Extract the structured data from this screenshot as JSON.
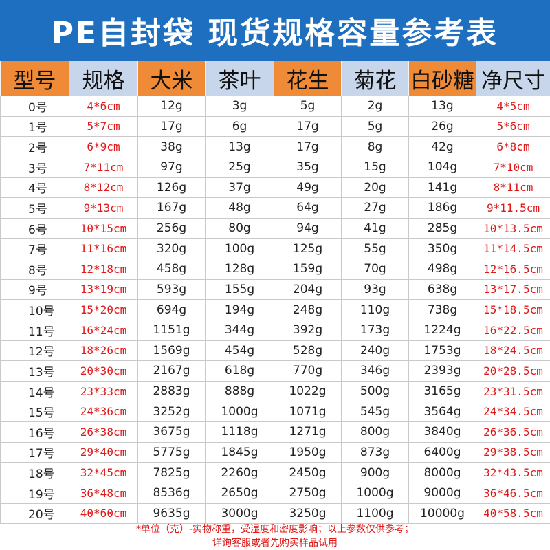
{
  "title": "PE自封袋  现货规格容量参考表",
  "headers": [
    {
      "label": "型号",
      "bg": "#ef8a37"
    },
    {
      "label": "规格",
      "bg": "#c7d6ea"
    },
    {
      "label": "大米",
      "bg": "#ef8a37"
    },
    {
      "label": "茶叶",
      "bg": "#c7d6ea"
    },
    {
      "label": "花生",
      "bg": "#ef8a37"
    },
    {
      "label": "菊花",
      "bg": "#c7d6ea"
    },
    {
      "label": "白砂糖",
      "bg": "#ef8a37"
    },
    {
      "label": "净尺寸",
      "bg": "#c7d6ea"
    }
  ],
  "rows": [
    [
      "0号",
      "4*6cm",
      "12g",
      "3g",
      "5g",
      "2g",
      "13g",
      "4*5cm"
    ],
    [
      "1号",
      "5*7cm",
      "17g",
      "6g",
      "17g",
      "5g",
      "26g",
      "5*6cm"
    ],
    [
      "2号",
      "6*9cm",
      "38g",
      "13g",
      "17g",
      "8g",
      "42g",
      "6*8cm"
    ],
    [
      "3号",
      "7*11cm",
      "97g",
      "25g",
      "35g",
      "15g",
      "104g",
      "7*10cm"
    ],
    [
      "4号",
      "8*12cm",
      "126g",
      "37g",
      "49g",
      "20g",
      "141g",
      "8*11cm"
    ],
    [
      "5号",
      "9*13cm",
      "167g",
      "48g",
      "64g",
      "27g",
      "186g",
      "9*11.5cm"
    ],
    [
      "6号",
      "10*15cm",
      "256g",
      "80g",
      "94g",
      "41g",
      "285g",
      "10*13.5cm"
    ],
    [
      "7号",
      "11*16cm",
      "320g",
      "100g",
      "125g",
      "55g",
      "350g",
      "11*14.5cm"
    ],
    [
      "8号",
      "12*18cm",
      "458g",
      "128g",
      "159g",
      "70g",
      "498g",
      "12*16.5cm"
    ],
    [
      "9号",
      "13*19cm",
      "593g",
      "155g",
      "204g",
      "93g",
      "638g",
      "13*17.5cm"
    ],
    [
      "10号",
      "15*20cm",
      "694g",
      "194g",
      "248g",
      "110g",
      "738g",
      "15*18.5cm"
    ],
    [
      "11号",
      "16*24cm",
      "1151g",
      "344g",
      "392g",
      "173g",
      "1224g",
      "16*22.5cm"
    ],
    [
      "12号",
      "18*26cm",
      "1569g",
      "454g",
      "528g",
      "240g",
      "1753g",
      "18*24.5cm"
    ],
    [
      "13号",
      "20*30cm",
      "2167g",
      "618g",
      "770g",
      "346g",
      "2393g",
      "20*28.5cm"
    ],
    [
      "14号",
      "23*33cm",
      "2883g",
      "888g",
      "1022g",
      "500g",
      "3165g",
      "23*31.5cm"
    ],
    [
      "15号",
      "24*36cm",
      "3252g",
      "1000g",
      "1071g",
      "545g",
      "3564g",
      "24*34.5cm"
    ],
    [
      "16号",
      "26*38cm",
      "3675g",
      "1118g",
      "1271g",
      "800g",
      "3840g",
      "26*36.5cm"
    ],
    [
      "17号",
      "29*40cm",
      "5775g",
      "1845g",
      "1950g",
      "873g",
      "6400g",
      "29*38.5cm"
    ],
    [
      "18号",
      "32*45cm",
      "7825g",
      "2260g",
      "2450g",
      "900g",
      "8000g",
      "32*43.5cm"
    ],
    [
      "19号",
      "36*48cm",
      "8536g",
      "2650g",
      "2750g",
      "1000g",
      "9000g",
      "36*46.5cm"
    ],
    [
      "20号",
      "40*60cm",
      "9635g",
      "3000g",
      "3250g",
      "1100g",
      "10000g",
      "40*58.5cm"
    ]
  ],
  "note": {
    "line1": "*单位（克）-实物称重，受湿度和密度影响；以上参数仅供参考；",
    "line2": "详询客服或者先购买样品试用"
  },
  "colors": {
    "title_bg": "#1f6fc1",
    "header_orange": "#ef8a37",
    "header_blue": "#c7d6ea",
    "size_text": "#e01818",
    "note_text": "#e01818"
  }
}
